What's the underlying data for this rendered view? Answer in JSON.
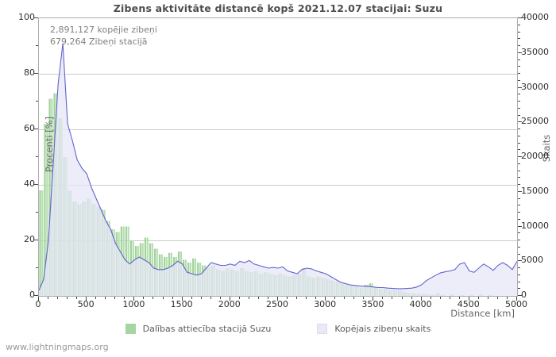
{
  "title": "Zibens aktivitāte distancē kopš 2021.12.07 stacijai: Suzu",
  "annotation": {
    "line1": "2,891,127 kopējie zibeņi",
    "line2": "679,264 Zibeņi stacijā"
  },
  "watermark": "www.lightningmaps.org",
  "legend": [
    {
      "label": "Dalības attiecība stacijā Suzu",
      "color": "#a7d5a1"
    },
    {
      "label": "Kopējais zibeņu skaits",
      "color": "#e9e9f7"
    }
  ],
  "colors": {
    "bar_green_a": "#a2d39d",
    "bar_green_b": "#b5dfb0",
    "line_blue": "#6262ce",
    "area_lavender": "#e6e6f7",
    "gridline": "#cbcbcb",
    "plot_border": "#adadad",
    "title_text": "#4d4d4d",
    "tick_text": "#2e2e2e",
    "annotation_text": "#808080",
    "watermark_text": "#9a9a9a"
  },
  "axes": {
    "x": {
      "title": "Distance   [km]",
      "min": 0,
      "max": 5000,
      "major_step": 500,
      "minor_step": 100,
      "tick_labels": [
        "0",
        "500",
        "1000",
        "1500",
        "2000",
        "2500",
        "3000",
        "3500",
        "4000",
        "4500",
        "5000"
      ]
    },
    "y_left": {
      "title": "Procenti   [%]",
      "min": 0,
      "max": 100,
      "major_step": 20,
      "minor_step": 10,
      "tick_labels": [
        "0",
        "20",
        "40",
        "60",
        "80",
        "100"
      ]
    },
    "y_right": {
      "title": "Skaits",
      "min": 0,
      "max": 40000,
      "major_step": 5000,
      "minor_step": 1000,
      "tick_labels": [
        "0",
        "5000",
        "10000",
        "15000",
        "20000",
        "25000",
        "30000",
        "35000",
        "40000"
      ]
    },
    "grid_percent_lines": [
      20,
      40,
      60,
      80
    ]
  },
  "chart_data": {
    "type": "mixed",
    "title": "Zibens aktivitāte distancē kopš 2021.12.07 stacijai: Suzu",
    "xlabel": "Distance [km]",
    "ylabel_left": "Procenti [%]",
    "ylabel_right": "Skaits",
    "x_start_km": 0,
    "x_step_km": 50,
    "xlim": [
      0,
      5000
    ],
    "ylim_left": [
      0,
      100
    ],
    "ylim_right": [
      0,
      40000
    ],
    "grid": "horizontal",
    "legend_position": "bottom",
    "series": [
      {
        "name": "Dalības attiecība stacijā Suzu",
        "type": "bar",
        "axis": "y_left",
        "unit": "%",
        "values": [
          38,
          62,
          71,
          73,
          64,
          50,
          38,
          34,
          33,
          34,
          35,
          33,
          32,
          31,
          27,
          24,
          23,
          25,
          25,
          20,
          18,
          19,
          21,
          19,
          17,
          15,
          14,
          15.5,
          14,
          16,
          13,
          12,
          13.5,
          12,
          11,
          10.5,
          11,
          9.5,
          9,
          10,
          9.5,
          9,
          10,
          9,
          8.5,
          9,
          8,
          8.5,
          8,
          7.5,
          8,
          7.5,
          7,
          7.5,
          8,
          10,
          7,
          6.5,
          7,
          6.5,
          6,
          5.5,
          5,
          4.5,
          4,
          4,
          3.5,
          3,
          4,
          4.5,
          3,
          2.5,
          2.5,
          2,
          2,
          2,
          1.5,
          1,
          1,
          0.8,
          0.8,
          0.5,
          0.5,
          1,
          0.3,
          0,
          0.5,
          0,
          0.3,
          0,
          0.4,
          0,
          0.5,
          0,
          0.3,
          0,
          0,
          0,
          0,
          0
        ]
      },
      {
        "name": "Kopējais zibeņu skaits",
        "type": "line",
        "axis": "y_right",
        "unit": "count",
        "values": [
          800,
          2400,
          8000,
          19200,
          30400,
          36400,
          24800,
          22400,
          19600,
          18400,
          17600,
          15600,
          14000,
          12400,
          10800,
          9600,
          7600,
          6400,
          5200,
          4600,
          5200,
          5600,
          5200,
          4800,
          4000,
          3800,
          3800,
          4000,
          4400,
          5000,
          4600,
          3400,
          3200,
          3000,
          3200,
          4000,
          4800,
          4600,
          4400,
          4400,
          4600,
          4400,
          5000,
          4800,
          5100,
          4600,
          4400,
          4200,
          4000,
          4100,
          4000,
          4200,
          3600,
          3400,
          3200,
          3800,
          4000,
          3900,
          3600,
          3400,
          3200,
          2800,
          2400,
          2000,
          1800,
          1600,
          1520,
          1440,
          1400,
          1360,
          1280,
          1200,
          1200,
          1120,
          1080,
          1040,
          1040,
          1080,
          1120,
          1280,
          1600,
          2200,
          2600,
          3000,
          3320,
          3480,
          3600,
          3800,
          4600,
          4800,
          3600,
          3400,
          4000,
          4600,
          4200,
          3680,
          4400,
          4800,
          4400,
          3800,
          5000
        ]
      }
    ],
    "annotations": [
      "2,891,127 kopējie zibeņi",
      "679,264 Zibeņi stacijā"
    ]
  }
}
